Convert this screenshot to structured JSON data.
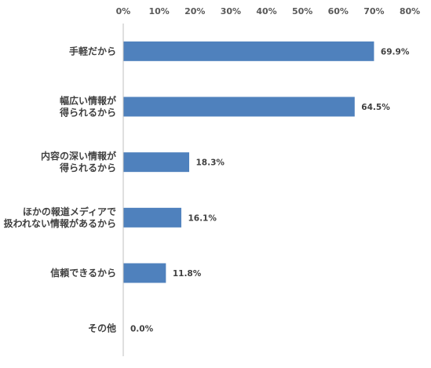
{
  "chart_data": {
    "type": "bar",
    "orientation": "horizontal",
    "categories": [
      [
        "手軽だから"
      ],
      [
        "幅広い情報が",
        "得られるから"
      ],
      [
        "内容の深い情報が",
        "得られるから"
      ],
      [
        "ほかの報道メディアで",
        "扱われない情報があるから"
      ],
      [
        "信頼できるから"
      ],
      [
        "その他"
      ]
    ],
    "values": [
      69.9,
      64.5,
      18.3,
      16.1,
      11.8,
      0.0
    ],
    "value_labels": [
      "69.9%",
      "64.5%",
      "18.3%",
      "16.1%",
      "11.8%",
      "0.0%"
    ],
    "xlim": [
      0,
      80
    ],
    "x_ticks": [
      0,
      10,
      20,
      30,
      40,
      50,
      60,
      70,
      80
    ],
    "x_tick_labels": [
      "0%",
      "10%",
      "20%",
      "30%",
      "40%",
      "50%",
      "60%",
      "70%",
      "80%"
    ],
    "x_axis_position": "top",
    "grid": false,
    "bar_color": "#4F81BD",
    "axis_color": "#BFBFBF",
    "title": "",
    "xlabel": "",
    "ylabel": ""
  }
}
